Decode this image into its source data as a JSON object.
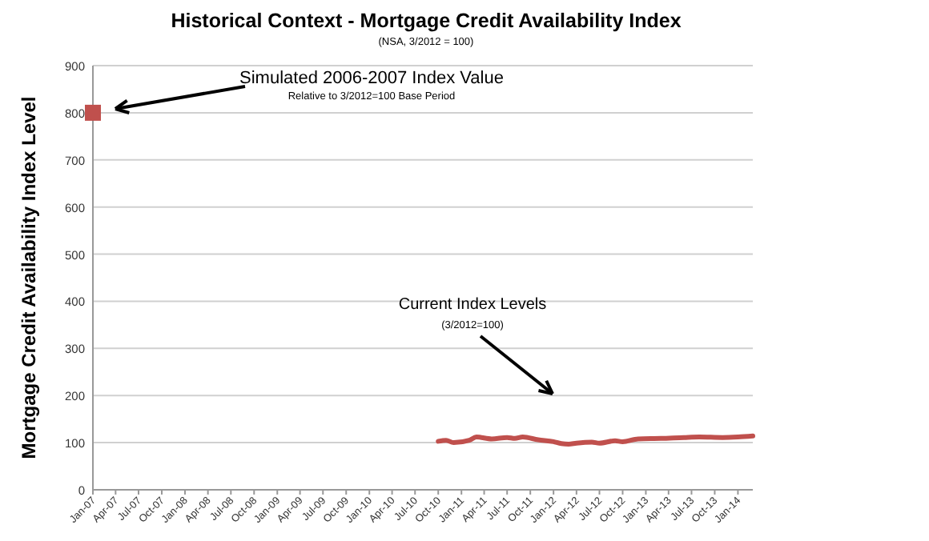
{
  "chart_data": {
    "type": "line",
    "title": "Historical Context - Mortgage Credit Availability Index",
    "subtitle": "(NSA, 3/2012 = 100)",
    "ylabel": "Mortgage Credit Availability Index Level",
    "annotations": [
      "Simulated 2006-2007 Index Value",
      "Relative to 3/2012=100 Base Period",
      "Current Index Levels",
      "(3/2012=100)"
    ],
    "xlim": [
      "2007-01",
      "2014-03"
    ],
    "xticks": [
      {
        "value": "2007-01",
        "label": "Jan-07"
      },
      {
        "value": "2007-04",
        "label": "Apr-07"
      },
      {
        "value": "2007-07",
        "label": "Jul-07"
      },
      {
        "value": "2007-10",
        "label": "Oct-07"
      },
      {
        "value": "2008-01",
        "label": "Jan-08"
      },
      {
        "value": "2008-04",
        "label": "Apr-08"
      },
      {
        "value": "2008-07",
        "label": "Jul-08"
      },
      {
        "value": "2008-10",
        "label": "Oct-08"
      },
      {
        "value": "2009-01",
        "label": "Jan-09"
      },
      {
        "value": "2009-04",
        "label": "Apr-09"
      },
      {
        "value": "2009-07",
        "label": "Jul-09"
      },
      {
        "value": "2009-10",
        "label": "Oct-09"
      },
      {
        "value": "2010-01",
        "label": "Jan-10"
      },
      {
        "value": "2010-04",
        "label": "Apr-10"
      },
      {
        "value": "2010-07",
        "label": "Jul-10"
      },
      {
        "value": "2010-10",
        "label": "Oct-10"
      },
      {
        "value": "2011-01",
        "label": "Jan-11"
      },
      {
        "value": "2011-04",
        "label": "Apr-11"
      },
      {
        "value": "2011-07",
        "label": "Jul-11"
      },
      {
        "value": "2011-10",
        "label": "Oct-11"
      },
      {
        "value": "2012-01",
        "label": "Jan-12"
      },
      {
        "value": "2012-04",
        "label": "Apr-12"
      },
      {
        "value": "2012-07",
        "label": "Jul-12"
      },
      {
        "value": "2012-10",
        "label": "Oct-12"
      },
      {
        "value": "2013-01",
        "label": "Jan-13"
      },
      {
        "value": "2013-04",
        "label": "Apr-13"
      },
      {
        "value": "2013-07",
        "label": "Jul-13"
      },
      {
        "value": "2013-10",
        "label": "Oct-13"
      },
      {
        "value": "2014-01",
        "label": "Jan-14"
      }
    ],
    "ylim": [
      0,
      900
    ],
    "yticks": [
      0,
      100,
      200,
      300,
      400,
      500,
      600,
      700,
      800,
      900
    ],
    "grid": "y",
    "series": [
      {
        "type": "scatter",
        "marker": "square",
        "color": "#c0504d",
        "x": [
          "2007-01"
        ],
        "values": [
          800
        ]
      },
      {
        "marker": "none",
        "line_style": "solid",
        "color": "#c0504d",
        "x": [
          "2010-10",
          "2010-11",
          "2010-12",
          "2011-02",
          "2011-03",
          "2011-05",
          "2011-07",
          "2011-08",
          "2011-09",
          "2011-11",
          "2012-01",
          "2012-02",
          "2012-03",
          "2012-04",
          "2012-06",
          "2012-07",
          "2012-09",
          "2012-10",
          "2012-12",
          "2013-03",
          "2013-06",
          "2013-08",
          "2013-11",
          "2014-01",
          "2014-03"
        ],
        "values": [
          103,
          105,
          100,
          105,
          112,
          108,
          111,
          109,
          112,
          106,
          102,
          98,
          97,
          99,
          101,
          99,
          104,
          102,
          108,
          109,
          111,
          112,
          111,
          112,
          114
        ]
      }
    ]
  }
}
